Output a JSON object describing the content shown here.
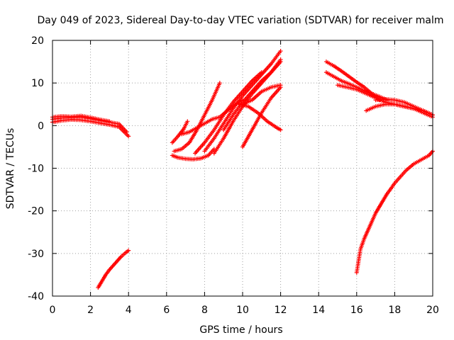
{
  "chart_data": {
    "type": "scatter",
    "title": "Day 049 of 2023, Sidereal Day-to-day VTEC variation (SDTVAR) for receiver malm",
    "xlabel": "GPS time / hours",
    "ylabel": "SDTVAR / TECUs",
    "xlim": [
      0,
      20
    ],
    "ylim": [
      -40,
      20
    ],
    "x_ticks": [
      0,
      2,
      4,
      6,
      8,
      10,
      12,
      14,
      16,
      18,
      20
    ],
    "y_ticks": [
      -40,
      -30,
      -20,
      -10,
      0,
      10,
      20
    ],
    "grid": true,
    "marker": "+",
    "color": "#ff0000",
    "series": [
      {
        "name": "arc-early-1",
        "x": [
          0.0,
          0.5,
          1.0,
          1.5,
          2.0,
          2.5,
          3.0,
          3.5,
          3.9
        ],
        "y": [
          1.5,
          1.8,
          1.9,
          2.0,
          1.6,
          1.2,
          0.8,
          0.4,
          -1.5
        ]
      },
      {
        "name": "arc-early-2",
        "x": [
          0.0,
          0.5,
          1.0,
          1.5,
          2.0,
          2.5,
          3.0,
          3.5,
          4.0
        ],
        "y": [
          0.8,
          1.2,
          1.4,
          1.3,
          1.0,
          0.6,
          0.2,
          -0.3,
          -2.5
        ]
      },
      {
        "name": "arc-early-3",
        "x": [
          0.0,
          0.5,
          1.0,
          1.5,
          2.0,
          2.5,
          3.0
        ],
        "y": [
          2.0,
          2.2,
          2.1,
          2.3,
          1.9,
          1.4,
          1.0
        ]
      },
      {
        "name": "arc-deep-early",
        "x": [
          2.4,
          2.6,
          2.8,
          3.0,
          3.2,
          3.4,
          3.6,
          3.8,
          4.0
        ],
        "y": [
          -38.0,
          -36.5,
          -35.0,
          -33.8,
          -32.8,
          -31.8,
          -30.8,
          -30.0,
          -29.3
        ]
      },
      {
        "name": "arc-mid-1",
        "x": [
          6.3,
          6.6,
          7.0,
          7.4,
          7.8,
          8.2,
          8.5
        ],
        "y": [
          -7.0,
          -7.5,
          -7.8,
          -7.9,
          -7.7,
          -7.0,
          -5.5
        ]
      },
      {
        "name": "arc-mid-2",
        "x": [
          6.3,
          6.6,
          6.9,
          7.1
        ],
        "y": [
          -4.0,
          -2.5,
          -0.8,
          1.0
        ]
      },
      {
        "name": "arc-mid-3",
        "x": [
          6.4,
          6.8,
          7.2,
          7.6,
          8.0,
          8.4,
          8.8
        ],
        "y": [
          -6.0,
          -5.5,
          -4.0,
          -1.0,
          2.5,
          6.0,
          10.0
        ]
      },
      {
        "name": "arc-mid-4",
        "x": [
          6.8,
          7.2,
          7.6,
          8.0,
          8.4,
          8.8,
          9.2,
          9.6,
          10.0
        ],
        "y": [
          -2.0,
          -1.5,
          -0.5,
          0.5,
          1.5,
          2.0,
          3.5,
          5.0,
          6.0
        ]
      },
      {
        "name": "arc-mid-5",
        "x": [
          7.5,
          8.0,
          8.5,
          9.0,
          9.5,
          10.0,
          10.5,
          11.0
        ],
        "y": [
          -6.5,
          -4.0,
          -1.0,
          2.5,
          5.5,
          8.0,
          10.5,
          12.5
        ]
      },
      {
        "name": "arc-mid-6",
        "x": [
          8.0,
          8.5,
          9.0,
          9.5,
          10.0,
          10.5,
          11.0,
          11.5,
          12.0
        ],
        "y": [
          -6.0,
          -3.0,
          0.5,
          4.0,
          7.0,
          9.5,
          12.0,
          14.5,
          17.5
        ]
      },
      {
        "name": "arc-mid-7",
        "x": [
          8.5,
          9.0,
          9.5,
          10.0,
          10.5,
          11.0,
          11.5,
          12.0
        ],
        "y": [
          -6.5,
          -3.0,
          1.0,
          4.5,
          7.5,
          10.0,
          12.5,
          15.5
        ]
      },
      {
        "name": "arc-mid-8",
        "x": [
          9.0,
          9.5,
          10.0,
          10.5,
          11.0,
          11.5,
          12.0
        ],
        "y": [
          -1.0,
          2.5,
          5.5,
          8.0,
          10.5,
          12.5,
          15.0
        ]
      },
      {
        "name": "arc-mid-9",
        "x": [
          10.0,
          10.5,
          11.0,
          11.5,
          12.0
        ],
        "y": [
          -5.0,
          -1.0,
          3.0,
          6.5,
          9.0
        ]
      },
      {
        "name": "arc-mid-10",
        "x": [
          9.8,
          10.3,
          10.8,
          11.3,
          11.8,
          12.0
        ],
        "y": [
          5.0,
          4.5,
          3.0,
          1.0,
          -0.5,
          -1.0
        ]
      },
      {
        "name": "arc-mid-11",
        "x": [
          10.0,
          10.5,
          11.0,
          11.5,
          12.0
        ],
        "y": [
          5.0,
          6.0,
          8.0,
          9.0,
          9.5
        ]
      },
      {
        "name": "arc-late-1",
        "x": [
          14.4,
          14.8,
          15.2,
          15.6,
          16.0,
          16.4,
          16.8,
          17.2
        ],
        "y": [
          15.0,
          14.0,
          12.8,
          11.5,
          10.2,
          9.0,
          7.5,
          6.0
        ]
      },
      {
        "name": "arc-late-2",
        "x": [
          14.4,
          14.8,
          15.2,
          15.6,
          16.0,
          16.4,
          16.8,
          17.2,
          17.6
        ],
        "y": [
          12.5,
          11.5,
          10.5,
          9.8,
          9.0,
          8.2,
          7.5,
          6.8,
          6.0
        ]
      },
      {
        "name": "arc-late-3",
        "x": [
          15.0,
          15.5,
          16.0,
          16.5,
          17.0,
          17.5,
          18.0,
          18.5,
          19.0,
          19.5,
          20.0
        ],
        "y": [
          9.5,
          9.0,
          8.5,
          7.5,
          6.5,
          5.5,
          5.0,
          4.5,
          4.0,
          3.5,
          2.5
        ]
      },
      {
        "name": "arc-late-4",
        "x": [
          16.5,
          17.0,
          17.5,
          18.0,
          18.5,
          19.0,
          19.5,
          20.0
        ],
        "y": [
          3.5,
          4.5,
          5.0,
          5.0,
          4.5,
          4.0,
          3.0,
          2.0
        ]
      },
      {
        "name": "arc-late-5",
        "x": [
          17.0,
          17.5,
          18.0,
          18.5,
          19.0,
          19.5,
          20.0
        ],
        "y": [
          6.0,
          6.2,
          6.0,
          5.5,
          4.5,
          3.5,
          2.5
        ]
      },
      {
        "name": "arc-deep-late",
        "x": [
          16.0,
          16.2,
          16.4,
          16.6,
          16.8,
          17.0,
          17.2,
          17.4,
          17.6,
          17.8,
          18.0,
          18.3,
          18.6,
          19.0,
          19.4,
          19.8,
          20.0
        ],
        "y": [
          -34.5,
          -29.0,
          -26.5,
          -24.5,
          -22.5,
          -20.5,
          -19.0,
          -17.5,
          -16.0,
          -14.8,
          -13.5,
          -12.0,
          -10.5,
          -9.0,
          -8.0,
          -7.0,
          -6.0
        ]
      }
    ]
  }
}
